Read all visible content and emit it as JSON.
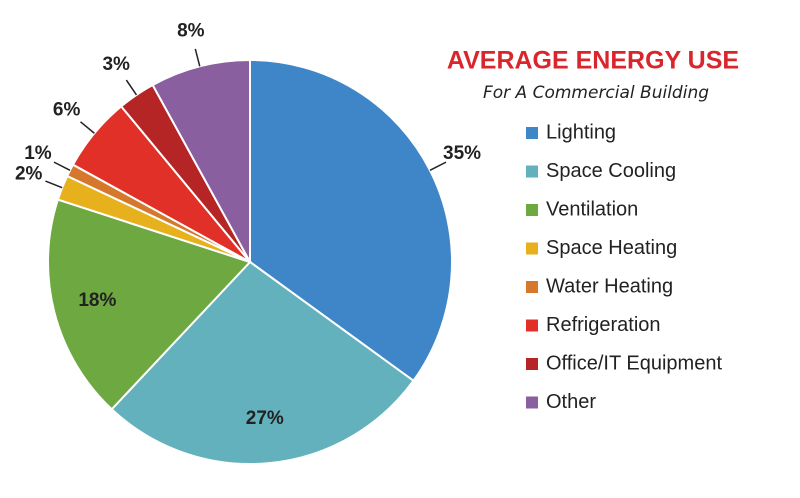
{
  "chart_data": {
    "type": "pie",
    "title": "AVERAGE ENERGY USE",
    "subtitle": "For A Commercial Building",
    "categories": [
      "Lighting",
      "Space Cooling",
      "Ventilation",
      "Space Heating",
      "Water Heating",
      "Refrigeration",
      "Office/IT Equipment",
      "Other"
    ],
    "values": [
      35,
      27,
      18,
      2,
      1,
      6,
      3,
      8
    ],
    "value_labels": [
      "35%",
      "27%",
      "18%",
      "2%",
      "1%",
      "6%",
      "3%",
      "8%"
    ],
    "colors": [
      "#3f86c8",
      "#63b1bc",
      "#6ea841",
      "#e6b11d",
      "#d5782c",
      "#e03027",
      "#b52525",
      "#8a5fa0"
    ]
  }
}
